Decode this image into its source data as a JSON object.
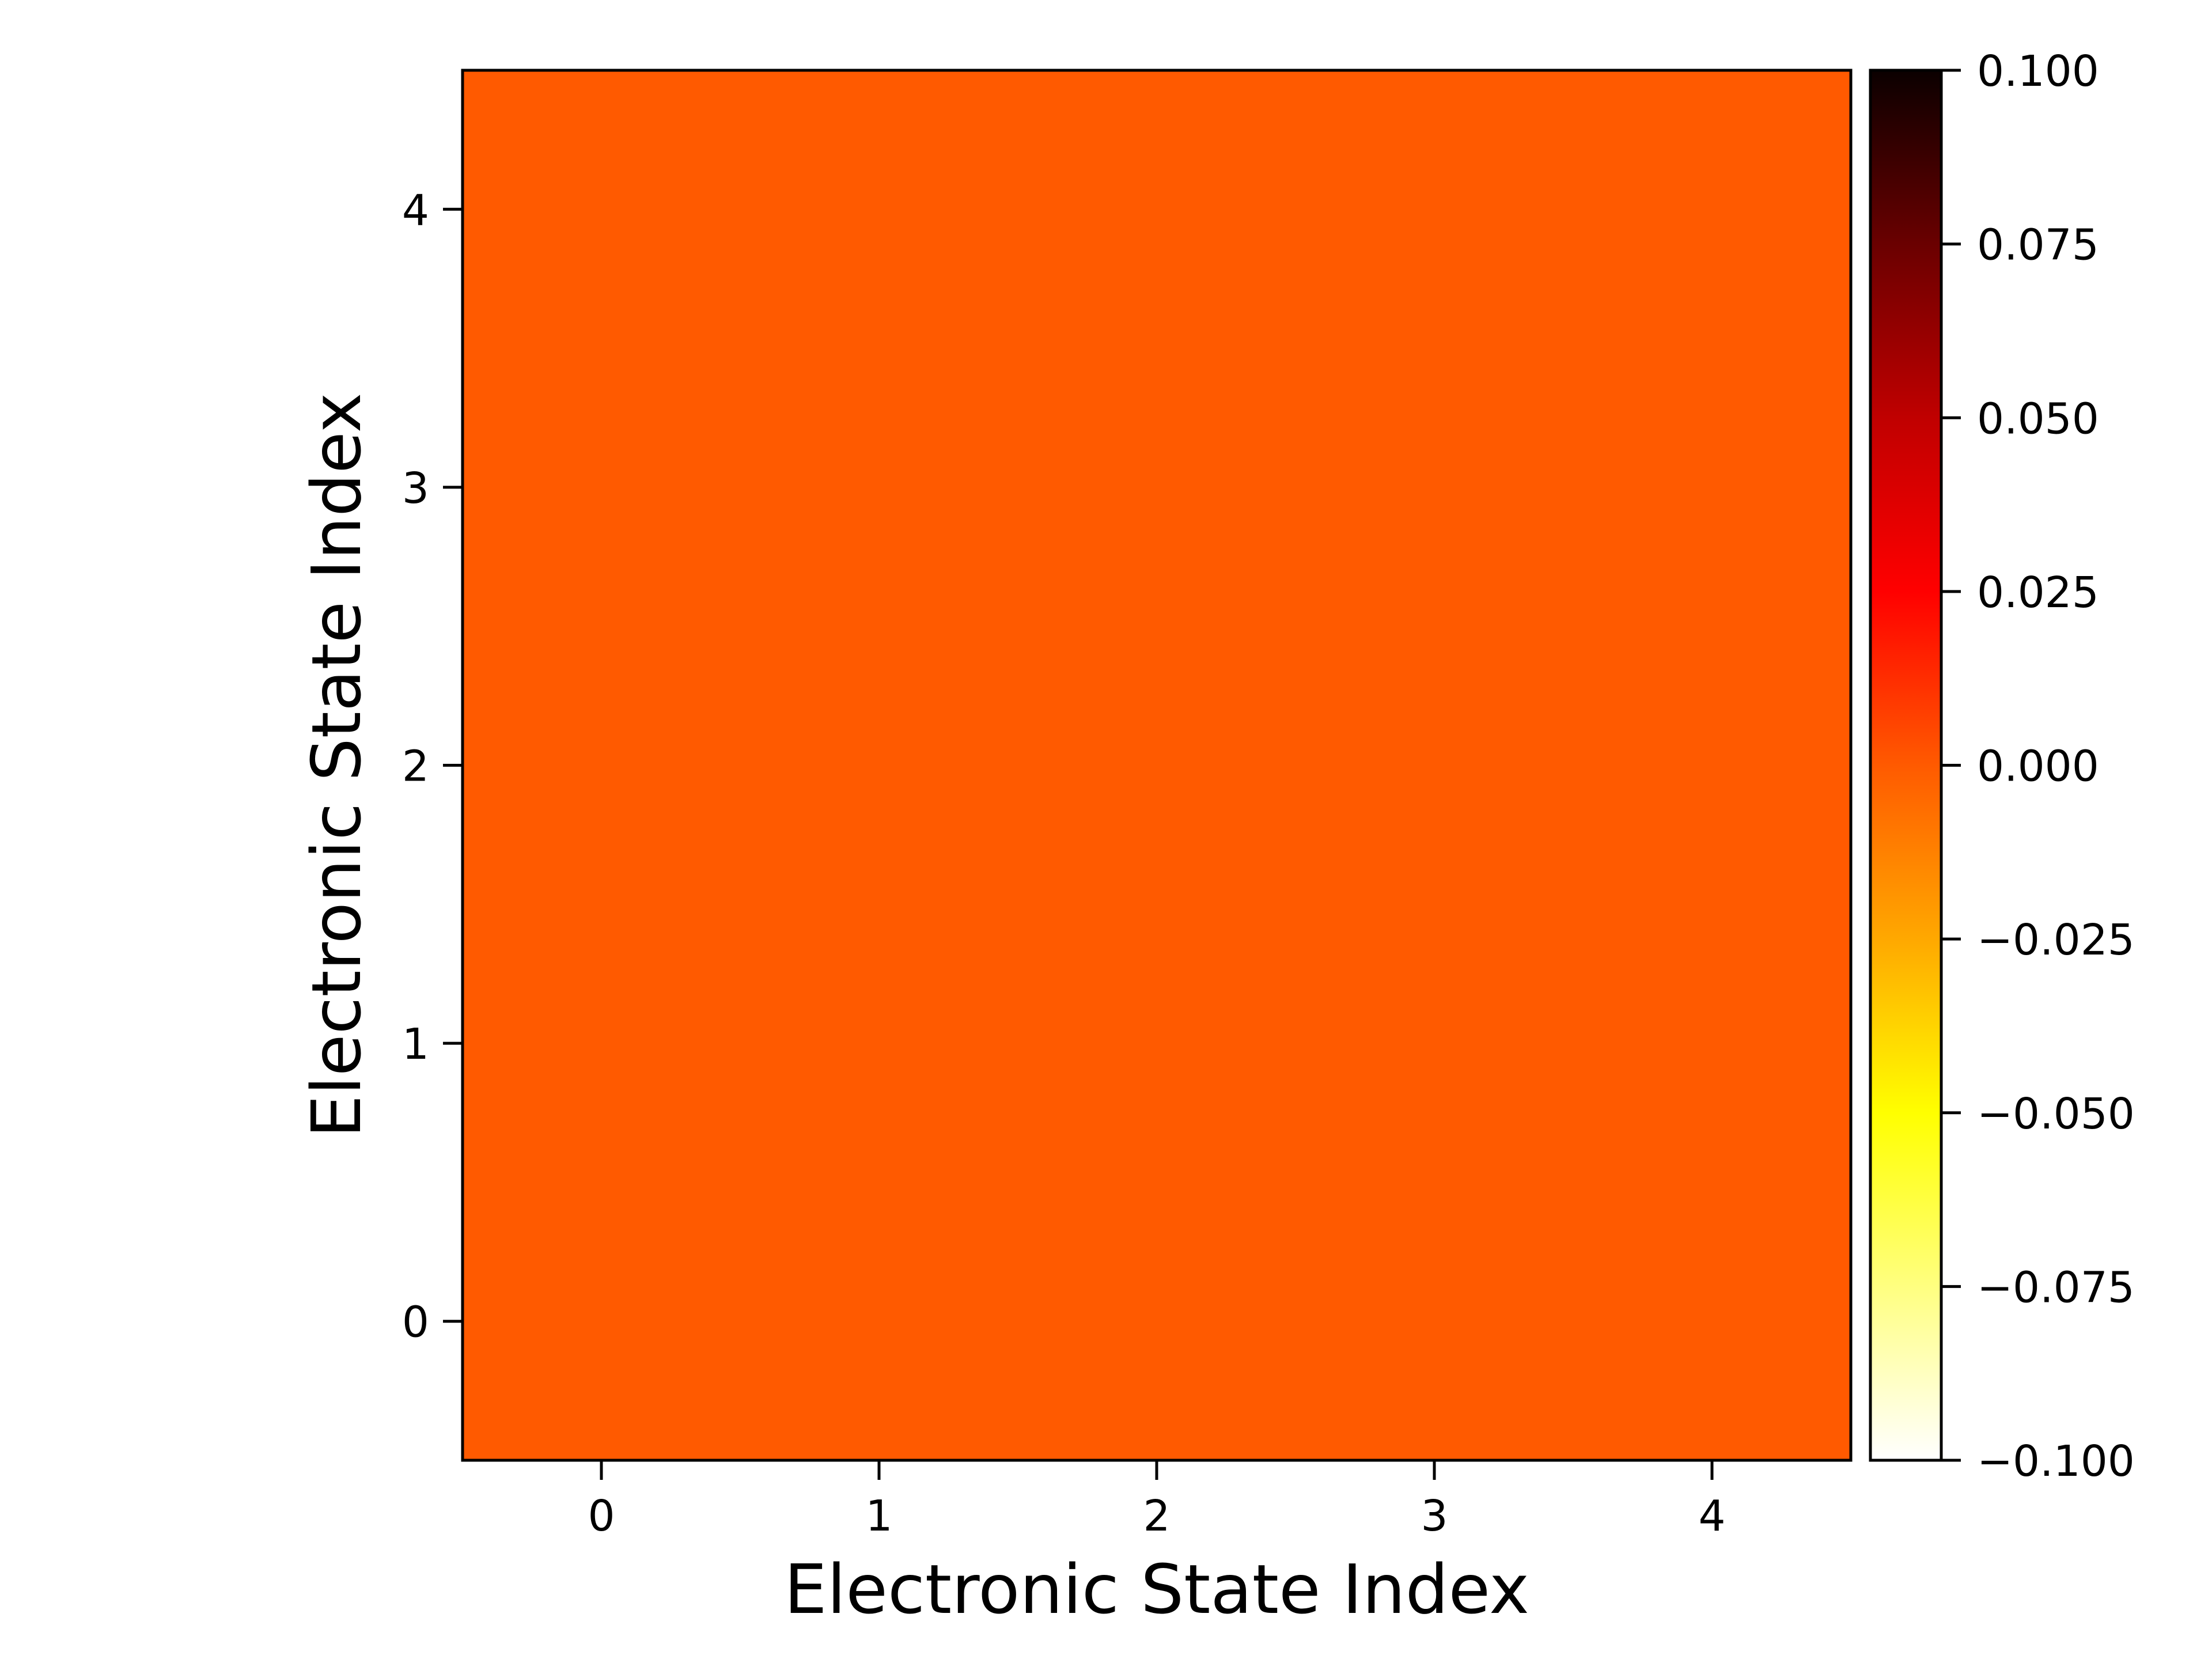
{
  "chart_data": {
    "type": "heatmap",
    "x": [
      0,
      1,
      2,
      3,
      4
    ],
    "y": [
      0,
      1,
      2,
      3,
      4
    ],
    "values": [
      [
        0,
        0,
        0,
        0,
        0
      ],
      [
        0,
        0,
        0,
        0,
        0
      ],
      [
        0,
        0,
        0,
        0,
        0
      ],
      [
        0,
        0,
        0,
        0,
        0
      ],
      [
        0,
        0,
        0,
        0,
        0
      ]
    ],
    "xlabel": "Electronic State Index",
    "ylabel": "Electronic State Index",
    "xlim": [
      -0.5,
      4.5
    ],
    "ylim": [
      -0.5,
      4.5
    ],
    "x_ticks": [
      "0",
      "1",
      "2",
      "3",
      "4"
    ],
    "y_ticks": [
      "0",
      "1",
      "2",
      "3",
      "4"
    ],
    "colormap": "hot_r",
    "colorbar": {
      "range": [
        -0.1,
        0.1
      ],
      "ticks": [
        -0.1,
        -0.075,
        -0.05,
        -0.025,
        0.0,
        0.025,
        0.05,
        0.075,
        0.1
      ],
      "tick_labels": [
        "−0.100",
        "−0.075",
        "−0.050",
        "−0.025",
        "0.000",
        "0.025",
        "0.050",
        "0.075",
        "0.100"
      ],
      "placement": "right"
    },
    "cell_color": "#ff5a00",
    "colormap_stops": [
      "#ffffff",
      "#ffff80",
      "#ffff00",
      "#ffa800",
      "#ff5a00",
      "#ff0000",
      "#c00000",
      "#6a0000",
      "#0b0000"
    ]
  }
}
